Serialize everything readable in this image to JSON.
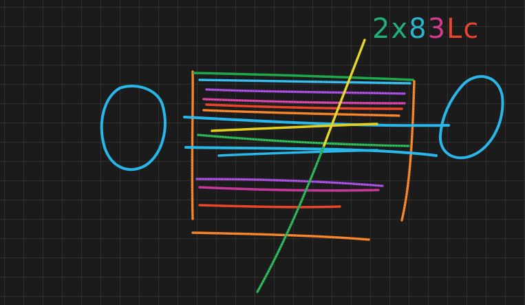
{
  "annotation": {
    "text_parts": [
      "2x",
      "8",
      "3",
      "Lc"
    ],
    "colors": [
      "#1fb07a",
      "#2bb3c9",
      "#d63a8c",
      "#e8452c"
    ]
  },
  "palette": {
    "blue": "#29b6e8",
    "orange": "#f07a1e",
    "red": "#e8452c",
    "purple": "#9b3fd1",
    "magenta": "#c8389a",
    "green": "#1fa84a",
    "yellow": "#e4d11c",
    "teal": "#1fb07a",
    "background": "#1b1b1b",
    "grid": "#2f2f2f"
  }
}
